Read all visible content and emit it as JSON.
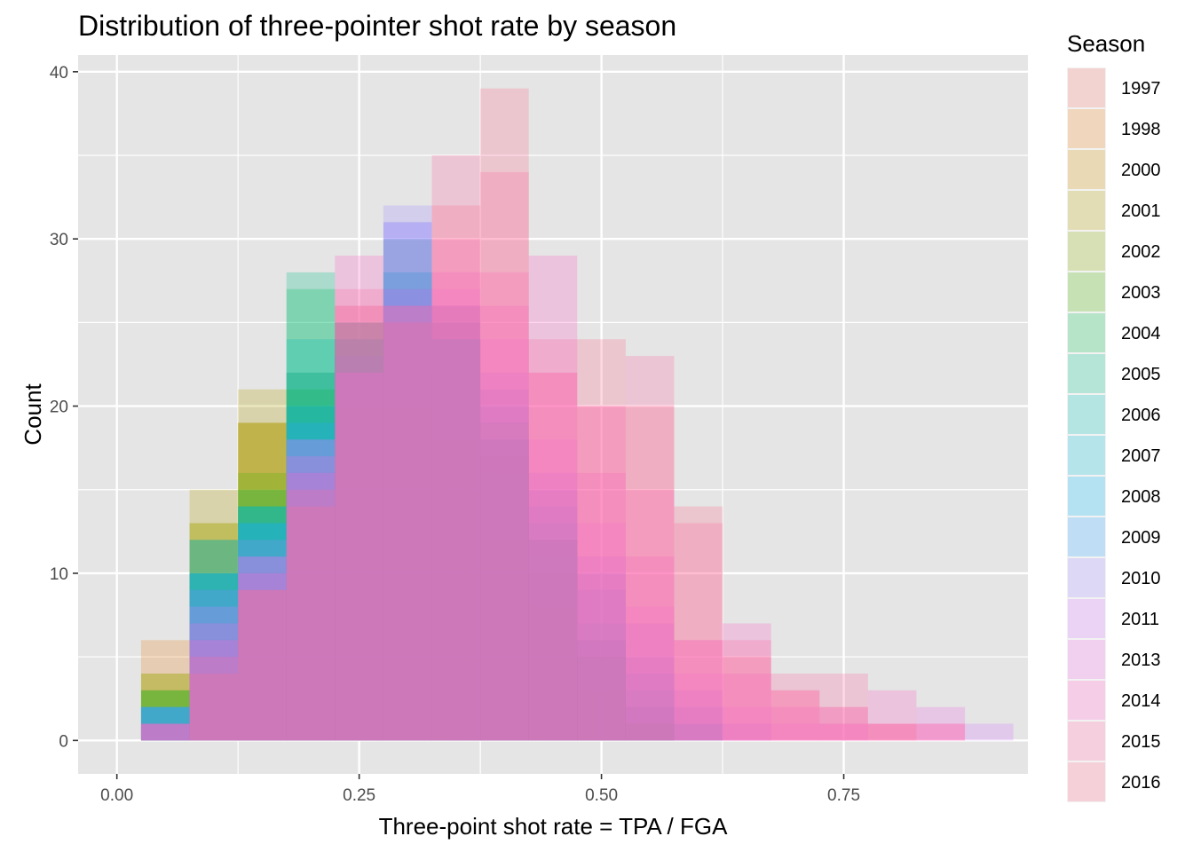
{
  "chart_data": {
    "type": "bar",
    "subtype": "overlapping-histogram",
    "title": "Distribution of three-pointer shot rate by season",
    "xlabel": "Three-point shot rate = TPA / FGA",
    "ylabel": "Count",
    "xlim": [
      -0.04,
      0.94
    ],
    "ylim": [
      -2,
      41
    ],
    "x_ticks": [
      0.0,
      0.25,
      0.5,
      0.75
    ],
    "x_tick_labels": [
      "0.00",
      "0.25",
      "0.50",
      "0.75"
    ],
    "y_ticks": [
      0,
      10,
      20,
      30,
      40
    ],
    "y_tick_labels": [
      "0",
      "10",
      "20",
      "30",
      "40"
    ],
    "bin_width": 0.05,
    "bin_centers": [
      0.05,
      0.1,
      0.15,
      0.2,
      0.25,
      0.3,
      0.35,
      0.4,
      0.45,
      0.5,
      0.55,
      0.6,
      0.65,
      0.7,
      0.75,
      0.8,
      0.85,
      0.9
    ],
    "grid": true,
    "legend_position": "right",
    "legend_title": "Season",
    "bar_alpha": 0.25,
    "series": [
      {
        "name": "1997",
        "color": "#F8766D",
        "values": [
          1,
          4,
          9,
          15,
          20,
          20,
          18,
          16,
          11,
          6,
          2,
          0,
          0,
          0,
          0,
          0,
          0,
          0
        ]
      },
      {
        "name": "1998",
        "color": "#E7851E",
        "values": [
          6,
          12,
          19,
          22,
          26,
          25,
          22,
          17,
          10,
          5,
          1,
          0,
          0,
          0,
          0,
          0,
          0,
          0
        ]
      },
      {
        "name": "2000",
        "color": "#D09400",
        "values": [
          3,
          13,
          19,
          20,
          23,
          22,
          18,
          12,
          8,
          3,
          1,
          0,
          0,
          0,
          0,
          0,
          0,
          0
        ]
      },
      {
        "name": "2001",
        "color": "#B2A100",
        "values": [
          4,
          15,
          21,
          21,
          24,
          30,
          26,
          17,
          10,
          4,
          1,
          0,
          0,
          0,
          0,
          0,
          0,
          0
        ]
      },
      {
        "name": "2002",
        "color": "#89AC00",
        "values": [
          4,
          13,
          19,
          22,
          22,
          28,
          25,
          19,
          12,
          5,
          1,
          0,
          0,
          0,
          0,
          0,
          0,
          0
        ]
      },
      {
        "name": "2003",
        "color": "#45B500",
        "values": [
          3,
          10,
          16,
          21,
          24,
          26,
          22,
          16,
          10,
          5,
          1,
          0,
          0,
          0,
          0,
          0,
          0,
          0
        ]
      },
      {
        "name": "2004",
        "color": "#00BC51",
        "values": [
          3,
          10,
          15,
          27,
          25,
          27,
          24,
          17,
          11,
          5,
          1,
          0,
          0,
          0,
          0,
          0,
          0,
          0
        ]
      },
      {
        "name": "2005",
        "color": "#00C087",
        "values": [
          2,
          9,
          14,
          28,
          25,
          28,
          24,
          18,
          12,
          6,
          2,
          0,
          0,
          0,
          0,
          0,
          0,
          0
        ]
      },
      {
        "name": "2006",
        "color": "#00C0B2",
        "values": [
          2,
          12,
          14,
          24,
          24,
          27,
          24,
          18,
          12,
          6,
          2,
          0,
          0,
          0,
          0,
          0,
          0,
          0
        ]
      },
      {
        "name": "2007",
        "color": "#00BCD6",
        "values": [
          2,
          12,
          13,
          22,
          25,
          28,
          24,
          19,
          13,
          7,
          3,
          1,
          0,
          0,
          0,
          0,
          0,
          0
        ]
      },
      {
        "name": "2008",
        "color": "#00B3F2",
        "values": [
          2,
          10,
          14,
          20,
          24,
          30,
          25,
          20,
          14,
          9,
          4,
          1,
          0,
          0,
          0,
          0,
          0,
          0
        ]
      },
      {
        "name": "2009",
        "color": "#29A3FF",
        "values": [
          2,
          10,
          13,
          19,
          23,
          31,
          26,
          21,
          15,
          10,
          5,
          2,
          0,
          0,
          0,
          0,
          0,
          0
        ]
      },
      {
        "name": "2010",
        "color": "#9C8DFF",
        "values": [
          2,
          9,
          12,
          18,
          22,
          32,
          26,
          22,
          16,
          11,
          7,
          3,
          1,
          0,
          0,
          0,
          0,
          0
        ]
      },
      {
        "name": "2011",
        "color": "#D277FF",
        "values": [
          1,
          8,
          11,
          18,
          22,
          31,
          27,
          24,
          18,
          13,
          8,
          4,
          2,
          1,
          1,
          0,
          0,
          1
        ]
      },
      {
        "name": "2013",
        "color": "#F166E8",
        "values": [
          1,
          7,
          11,
          17,
          26,
          27,
          28,
          26,
          22,
          16,
          11,
          6,
          4,
          2,
          2,
          1,
          2,
          0
        ]
      },
      {
        "name": "2014",
        "color": "#FF61C7",
        "values": [
          1,
          6,
          10,
          16,
          29,
          26,
          30,
          28,
          29,
          20,
          15,
          6,
          7,
          3,
          1,
          3,
          1,
          0
        ]
      },
      {
        "name": "2015",
        "color": "#FF689E",
        "values": [
          1,
          5,
          9,
          15,
          27,
          26,
          35,
          34,
          24,
          20,
          23,
          13,
          6,
          4,
          4,
          1,
          1,
          0
        ]
      },
      {
        "name": "2016",
        "color": "#FF6C91",
        "values": [
          0,
          4,
          9,
          14,
          25,
          25,
          32,
          39,
          22,
          24,
          20,
          14,
          5,
          3,
          2,
          1,
          0,
          0
        ]
      }
    ]
  }
}
